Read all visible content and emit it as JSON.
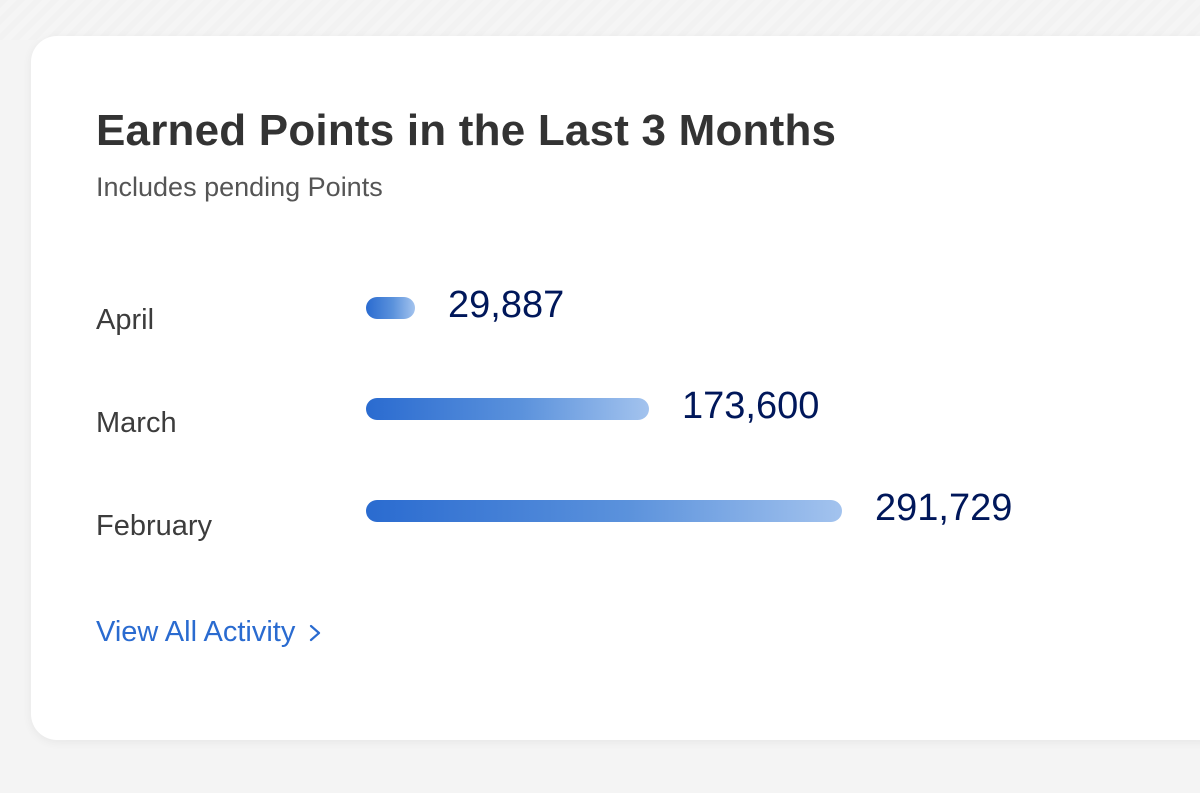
{
  "card": {
    "title": "Earned Points in the Last 3 Months",
    "subtitle": "Includes pending Points",
    "link_label": "View All Activity",
    "link_icon": "chevron-right-icon",
    "accent_color": "#2a6bd0",
    "value_color": "#00175a"
  },
  "chart_data": {
    "type": "bar",
    "orientation": "horizontal",
    "categories": [
      "April",
      "March",
      "February"
    ],
    "values": [
      29887,
      173600,
      291729
    ],
    "value_labels": [
      "29,887",
      "173,600",
      "291,729"
    ],
    "title": "Earned Points in the Last 3 Months",
    "subtitle": "Includes pending Points",
    "grid": false,
    "legend": "none"
  }
}
